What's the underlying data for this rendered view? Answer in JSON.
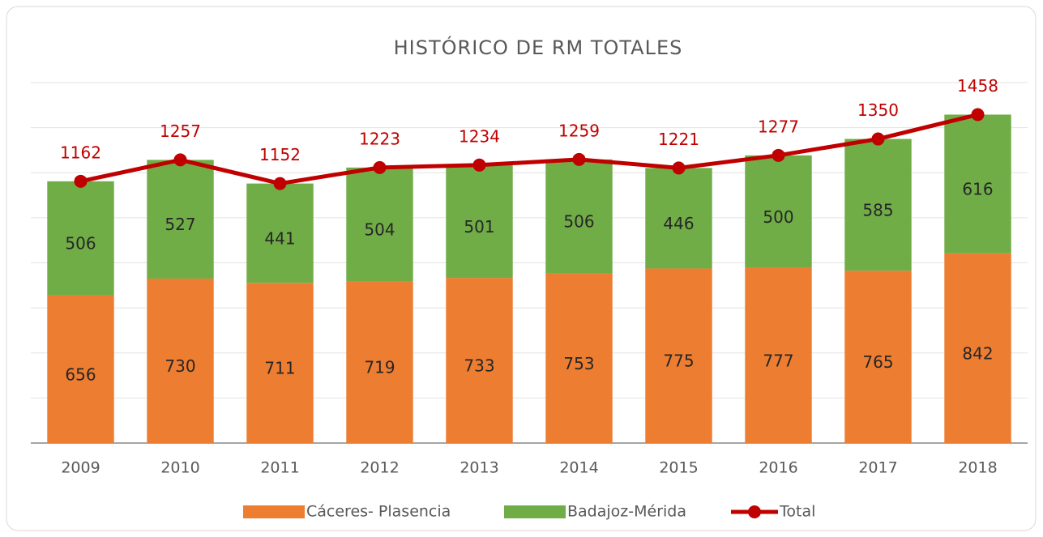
{
  "chart_data": {
    "type": "stacked_bar_line",
    "title": "HISTÓRICO DE RM TOTALES",
    "categories": [
      "2009",
      "2010",
      "2011",
      "2012",
      "2013",
      "2014",
      "2015",
      "2016",
      "2017",
      "2018"
    ],
    "series": [
      {
        "name": "Cáceres- Plasencia",
        "type": "bar",
        "color": "#ed7d31",
        "values": [
          656,
          730,
          711,
          719,
          733,
          753,
          775,
          777,
          765,
          842
        ]
      },
      {
        "name": "Badajoz-Mérida",
        "type": "bar",
        "color": "#70ad47",
        "values": [
          506,
          527,
          441,
          504,
          501,
          506,
          446,
          500,
          585,
          616
        ]
      },
      {
        "name": "Total",
        "type": "line",
        "color": "#c00000",
        "values": [
          1162,
          1257,
          1152,
          1223,
          1234,
          1259,
          1221,
          1277,
          1350,
          1458
        ]
      }
    ],
    "ylim": [
      0,
      1600
    ],
    "yticks": [
      0,
      200,
      400,
      600,
      800,
      1000,
      1200,
      1400,
      1600
    ],
    "grid": true,
    "legend": "bottom"
  }
}
